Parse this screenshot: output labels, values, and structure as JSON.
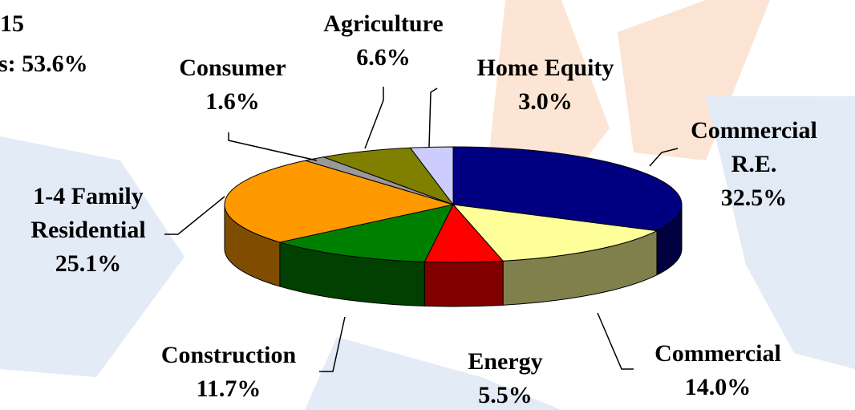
{
  "chart_data": {
    "type": "pie3d",
    "categories": [
      "Commercial R.E.",
      "Commercial",
      "Energy",
      "Construction",
      "1-4 Family Residential",
      "Consumer",
      "Agriculture",
      "Home Equity"
    ],
    "values": [
      32.5,
      14.0,
      5.5,
      11.7,
      25.1,
      1.6,
      6.6,
      3.0
    ],
    "value_labels": [
      "32.5%",
      "14.0%",
      "5.5%",
      "11.7%",
      "25.1%",
      "1.6%",
      "6.6%",
      "3.0%"
    ],
    "colors": [
      "#000080",
      "#ffff99",
      "#ff0000",
      "#008000",
      "#ff9900",
      "#999999",
      "#808000",
      "#ccccff"
    ],
    "annotations": [
      "15",
      "s: 53.6%"
    ]
  }
}
